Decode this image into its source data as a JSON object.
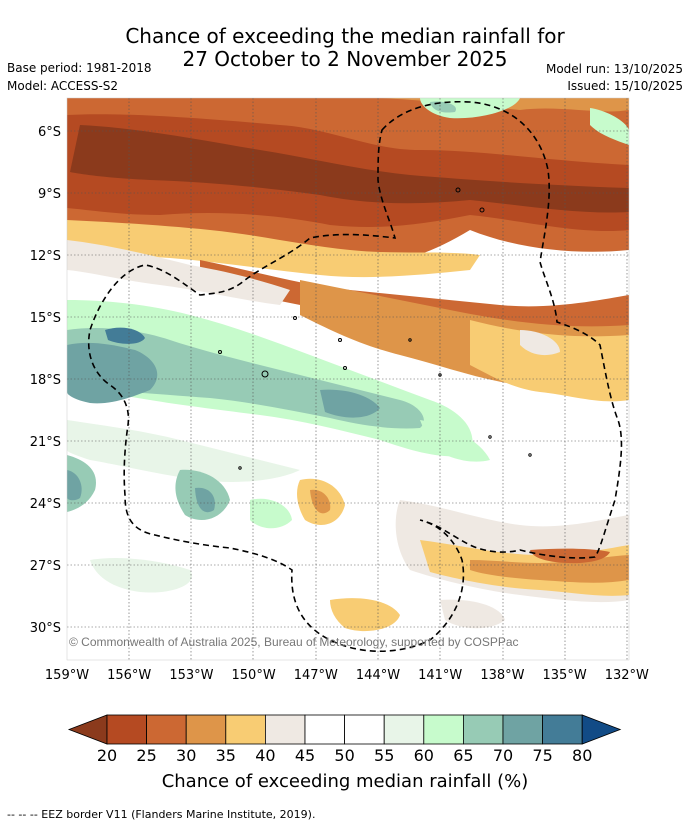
{
  "title": {
    "line1": "Chance of exceeding the median rainfall for",
    "line2": "27 October to 2 November 2025"
  },
  "meta": {
    "base_period": "Base period: 1981-2018",
    "model": "Model: ACCESS-S2",
    "model_run": "Model run: 13/10/2025",
    "issued": "Issued: 15/10/2025"
  },
  "map": {
    "lat_labels": [
      "6°S",
      "9°S",
      "12°S",
      "15°S",
      "18°S",
      "21°S",
      "24°S",
      "27°S",
      "30°S"
    ],
    "lon_labels": [
      "159°W",
      "156°W",
      "153°W",
      "150°W",
      "147°W",
      "144°W",
      "141°W",
      "138°W",
      "135°W",
      "132°W"
    ],
    "copyright": "© Commonwealth of Australia 2025, Bureau of Meteorology, supported by COSPPac"
  },
  "colorbar": {
    "ticks": [
      "20",
      "25",
      "30",
      "35",
      "40",
      "45",
      "50",
      "55",
      "60",
      "65",
      "70",
      "75",
      "80"
    ],
    "colors": [
      "#8b3a1c",
      "#b54a22",
      "#cc6833",
      "#de9549",
      "#f8cc73",
      "#efe9e3",
      "#ffffff",
      "#ffffff",
      "#e8f5e8",
      "#c7fbcc",
      "#97cbb5",
      "#6fa3a3",
      "#437c97",
      "#124b86"
    ],
    "title": "Chance of exceeding median rainfall (%)"
  },
  "footnote": "--  --  -- EEZ border V11 (Flanders Marine Institute, 2019)."
}
